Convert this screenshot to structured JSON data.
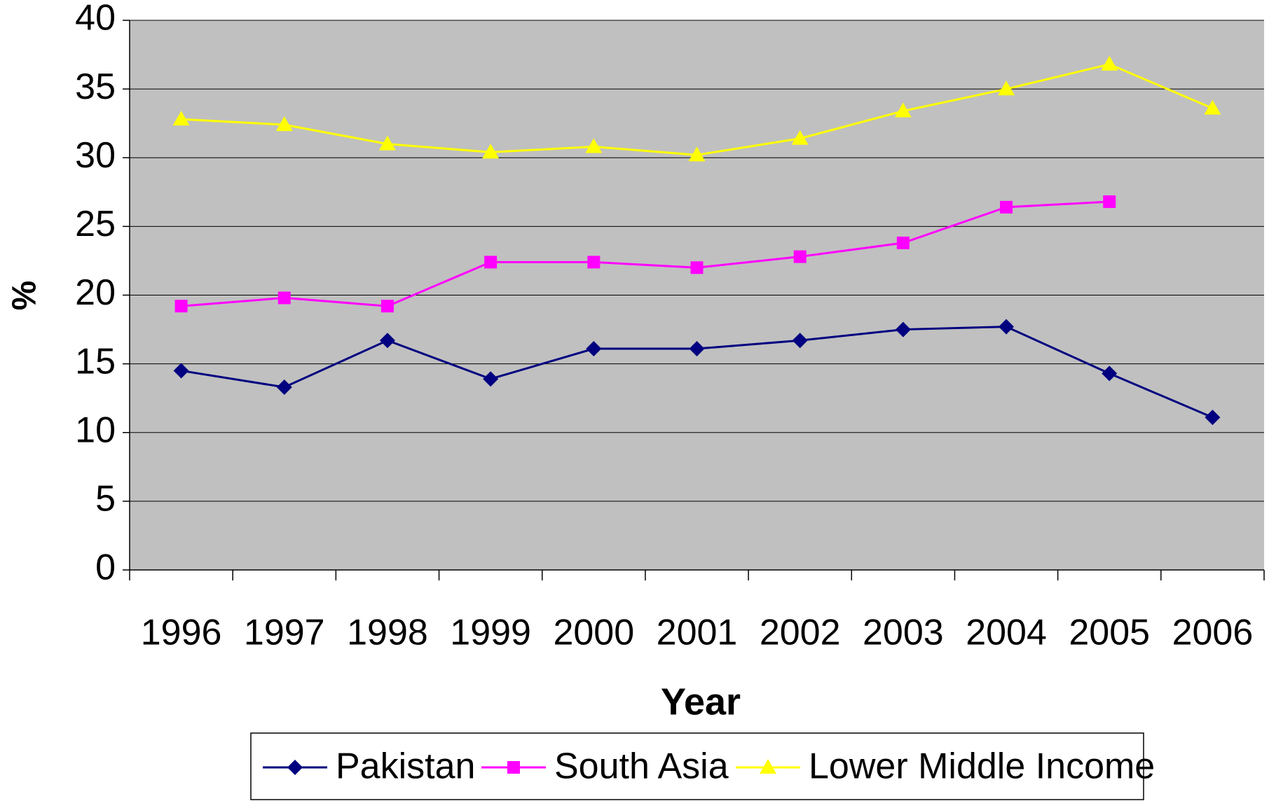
{
  "chart_data": {
    "type": "line",
    "x_label": "Year",
    "y_label": "%",
    "categories": [
      "1996",
      "1997",
      "1998",
      "1999",
      "2000",
      "2001",
      "2002",
      "2003",
      "2004",
      "2005",
      "2006"
    ],
    "series": [
      {
        "name": "Pakistan",
        "color": "#000080",
        "marker": "diamond",
        "values": [
          14.5,
          13.3,
          16.7,
          13.9,
          16.1,
          16.1,
          16.7,
          17.5,
          17.7,
          14.3,
          11.1
        ]
      },
      {
        "name": "South Asia",
        "color": "#ff00ff",
        "marker": "square",
        "values": [
          19.2,
          19.8,
          19.2,
          22.4,
          22.4,
          22.0,
          22.8,
          23.8,
          26.4,
          26.8,
          null
        ]
      },
      {
        "name": "Lower Middle Income",
        "color": "#ffff00",
        "marker": "triangle",
        "values": [
          32.8,
          32.4,
          31.0,
          30.4,
          30.8,
          30.2,
          31.4,
          33.4,
          35.0,
          36.8,
          33.6
        ]
      }
    ],
    "ylim": [
      0,
      40
    ],
    "yticks": [
      0,
      5,
      10,
      15,
      20,
      25,
      30,
      35,
      40
    ],
    "grid": true,
    "legend": "bottom"
  }
}
